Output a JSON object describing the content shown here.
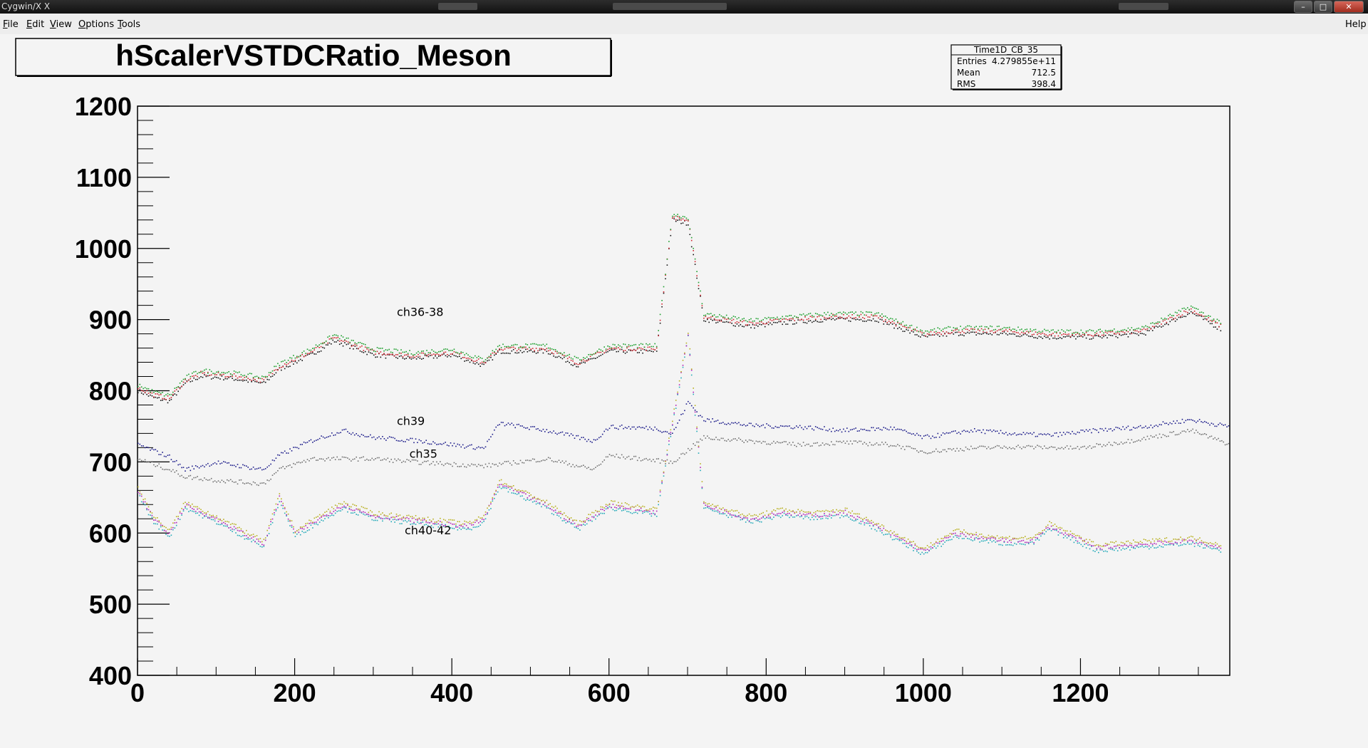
{
  "window": {
    "title": "Cygwin/X X",
    "buttons": {
      "minimize": "–",
      "maximize": "□",
      "close": "✕"
    }
  },
  "menubar": {
    "items": [
      {
        "label": "File",
        "key": "F",
        "rest": "ile"
      },
      {
        "label": "Edit",
        "key": "E",
        "rest": "dit"
      },
      {
        "label": "View",
        "key": "V",
        "rest": "iew"
      },
      {
        "label": "Options",
        "key": "O",
        "rest": "ptions"
      },
      {
        "label": "Tools",
        "key": "T",
        "rest": "ools"
      }
    ],
    "help": {
      "label": "Help"
    }
  },
  "stats": {
    "name": "Time1D_CB_35",
    "rows": [
      {
        "label": "Entries",
        "value": "4.279855e+11"
      },
      {
        "label": "Mean",
        "value": "712.5"
      },
      {
        "label": "RMS",
        "value": "398.4"
      }
    ]
  },
  "chart_data": {
    "type": "scatter",
    "title": "hScalerVSTDCRatio_Meson",
    "xlabel": "",
    "ylabel": "",
    "xlim": [
      0,
      1390
    ],
    "ylim": [
      400,
      1200
    ],
    "x_ticks": [
      0,
      200,
      400,
      600,
      800,
      1000,
      1200
    ],
    "y_ticks": [
      400,
      500,
      600,
      700,
      800,
      900,
      1000,
      1100,
      1200
    ],
    "grid": false,
    "annotations": [
      {
        "text": "ch36-38",
        "x": 330,
        "y": 905
      },
      {
        "text": "ch39",
        "x": 330,
        "y": 752
      },
      {
        "text": "ch35",
        "x": 346,
        "y": 706
      },
      {
        "text": "ch40-42",
        "x": 340,
        "y": 598
      }
    ],
    "colors": {
      "black": "#111111",
      "red": "#d0202a",
      "green": "#1a9e2a",
      "blue": "#1c1c8a",
      "gray": "#707070",
      "cyan": "#21a9b8",
      "magenta": "#b020b8",
      "yellow": "#b8b020"
    },
    "series": [
      {
        "label": "ch36-38",
        "colors": [
          "black",
          "red",
          "green"
        ],
        "points": [
          [
            0,
            805
          ],
          [
            20,
            795
          ],
          [
            40,
            790
          ],
          [
            60,
            815
          ],
          [
            80,
            825
          ],
          [
            120,
            822
          ],
          [
            160,
            815
          ],
          [
            180,
            835
          ],
          [
            220,
            855
          ],
          [
            250,
            875
          ],
          [
            300,
            855
          ],
          [
            350,
            850
          ],
          [
            400,
            855
          ],
          [
            440,
            840
          ],
          [
            460,
            860
          ],
          [
            520,
            860
          ],
          [
            560,
            840
          ],
          [
            600,
            860
          ],
          [
            660,
            860
          ],
          [
            680,
            1045
          ],
          [
            700,
            1040
          ],
          [
            720,
            905
          ],
          [
            780,
            895
          ],
          [
            820,
            900
          ],
          [
            880,
            905
          ],
          [
            940,
            905
          ],
          [
            1000,
            880
          ],
          [
            1040,
            885
          ],
          [
            1100,
            885
          ],
          [
            1160,
            880
          ],
          [
            1220,
            880
          ],
          [
            1280,
            885
          ],
          [
            1320,
            905
          ],
          [
            1340,
            915
          ],
          [
            1380,
            890
          ]
        ]
      },
      {
        "label": "ch39",
        "colors": [
          "blue"
        ],
        "points": [
          [
            0,
            725
          ],
          [
            40,
            708
          ],
          [
            60,
            690
          ],
          [
            100,
            700
          ],
          [
            160,
            690
          ],
          [
            180,
            710
          ],
          [
            220,
            730
          ],
          [
            260,
            745
          ],
          [
            300,
            735
          ],
          [
            360,
            730
          ],
          [
            440,
            720
          ],
          [
            460,
            755
          ],
          [
            520,
            745
          ],
          [
            580,
            730
          ],
          [
            600,
            750
          ],
          [
            660,
            748
          ],
          [
            680,
            740
          ],
          [
            700,
            785
          ],
          [
            720,
            760
          ],
          [
            780,
            752
          ],
          [
            840,
            750
          ],
          [
            900,
            745
          ],
          [
            960,
            748
          ],
          [
            1000,
            735
          ],
          [
            1060,
            745
          ],
          [
            1120,
            740
          ],
          [
            1160,
            738
          ],
          [
            1220,
            745
          ],
          [
            1280,
            750
          ],
          [
            1340,
            760
          ],
          [
            1390,
            750
          ]
        ]
      },
      {
        "label": "ch35",
        "colors": [
          "gray"
        ],
        "points": [
          [
            0,
            705
          ],
          [
            40,
            690
          ],
          [
            60,
            680
          ],
          [
            100,
            675
          ],
          [
            160,
            670
          ],
          [
            180,
            690
          ],
          [
            220,
            705
          ],
          [
            300,
            705
          ],
          [
            360,
            700
          ],
          [
            440,
            695
          ],
          [
            520,
            705
          ],
          [
            580,
            690
          ],
          [
            600,
            710
          ],
          [
            680,
            700
          ],
          [
            720,
            735
          ],
          [
            780,
            730
          ],
          [
            840,
            725
          ],
          [
            900,
            728
          ],
          [
            960,
            725
          ],
          [
            1000,
            715
          ],
          [
            1060,
            720
          ],
          [
            1120,
            722
          ],
          [
            1200,
            720
          ],
          [
            1260,
            730
          ],
          [
            1340,
            745
          ],
          [
            1390,
            725
          ]
        ]
      },
      {
        "label": "ch40-42",
        "colors": [
          "cyan",
          "magenta",
          "yellow"
        ],
        "points": [
          [
            0,
            660
          ],
          [
            20,
            620
          ],
          [
            40,
            600
          ],
          [
            60,
            640
          ],
          [
            100,
            620
          ],
          [
            160,
            585
          ],
          [
            180,
            650
          ],
          [
            200,
            600
          ],
          [
            260,
            640
          ],
          [
            300,
            625
          ],
          [
            380,
            615
          ],
          [
            420,
            610
          ],
          [
            440,
            620
          ],
          [
            460,
            670
          ],
          [
            520,
            640
          ],
          [
            560,
            610
          ],
          [
            600,
            640
          ],
          [
            660,
            630
          ],
          [
            700,
            880
          ],
          [
            720,
            640
          ],
          [
            780,
            620
          ],
          [
            820,
            630
          ],
          [
            860,
            625
          ],
          [
            900,
            630
          ],
          [
            940,
            610
          ],
          [
            1000,
            575
          ],
          [
            1040,
            600
          ],
          [
            1100,
            590
          ],
          [
            1140,
            590
          ],
          [
            1160,
            610
          ],
          [
            1220,
            580
          ],
          [
            1280,
            585
          ],
          [
            1340,
            590
          ],
          [
            1380,
            580
          ]
        ]
      }
    ]
  }
}
